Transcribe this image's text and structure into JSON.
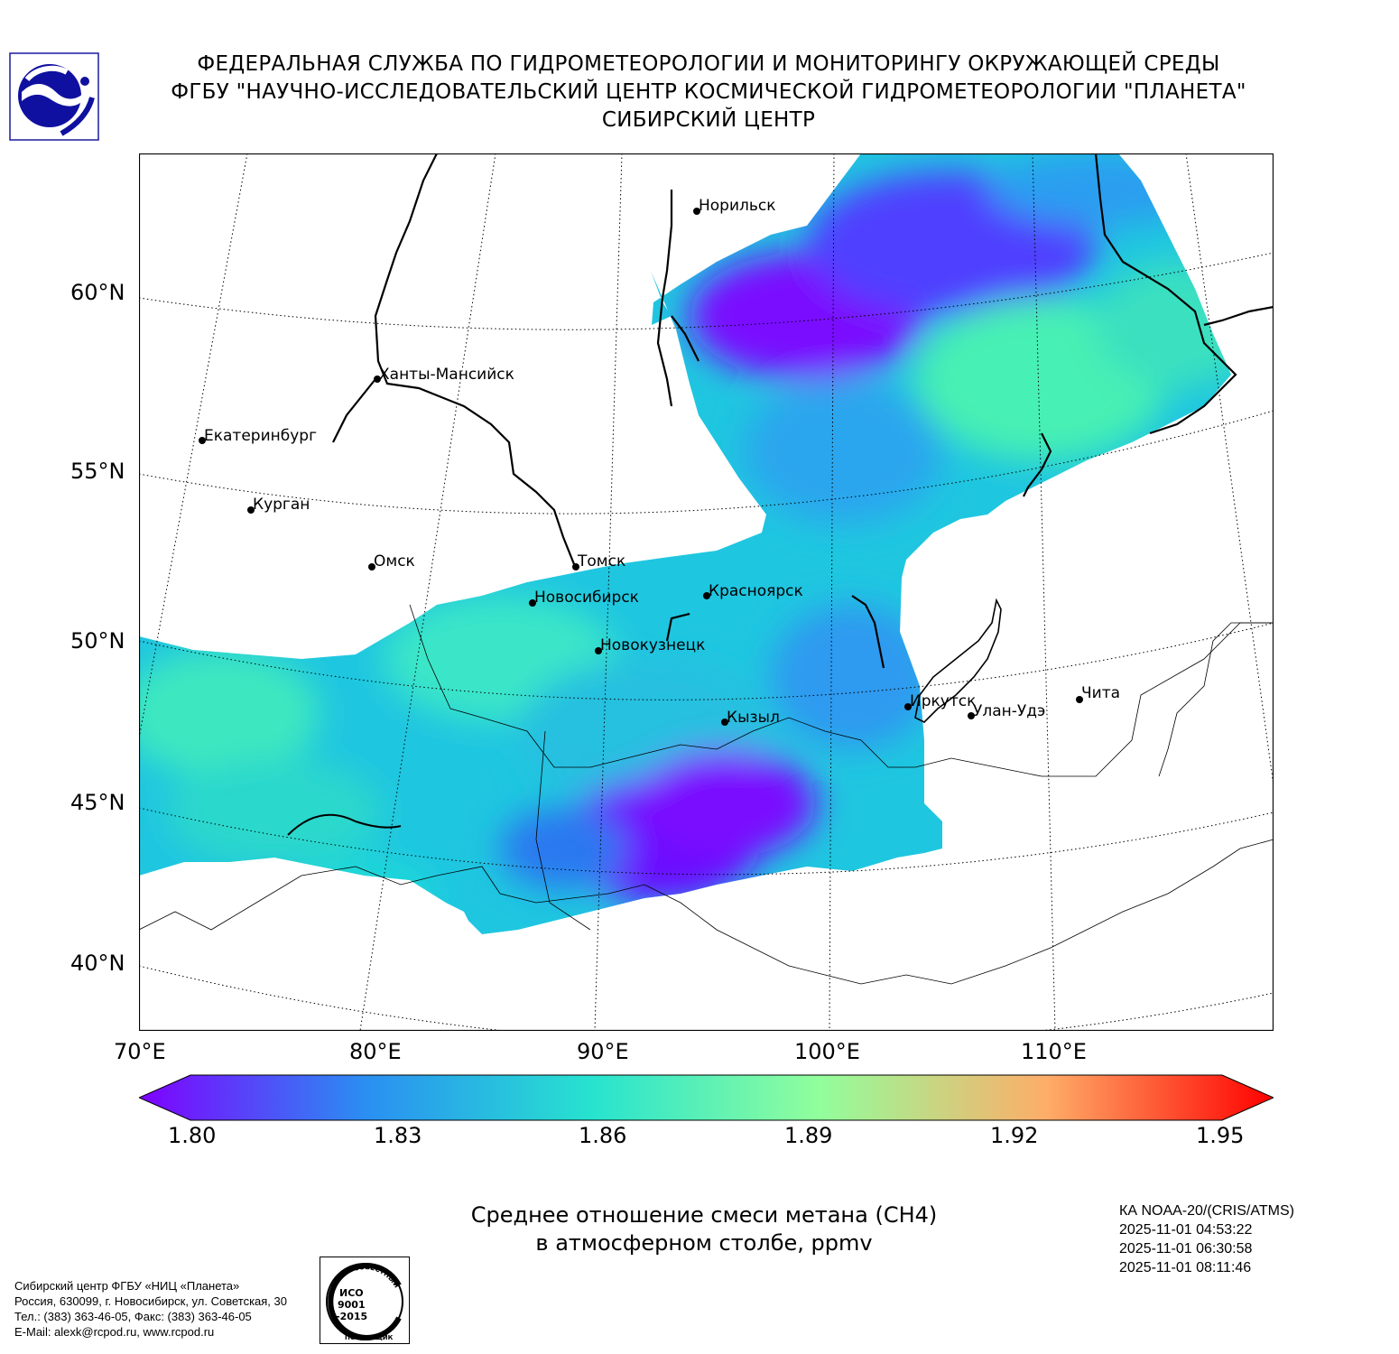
{
  "header": {
    "line1": "ФЕДЕРАЛЬНАЯ СЛУЖБА ПО ГИДРОМЕТЕОРОЛОГИИ И МОНИТОРИНГУ ОКРУЖАЮЩЕЙ СРЕДЫ",
    "line2": "ФГБУ \"НАУЧНО-ИССЛЕДОВАТЕЛЬСКИЙ ЦЕНТР КОСМИЧЕСКОЙ ГИДРОМЕТЕОРОЛОГИИ \"ПЛАНЕТА\"",
    "line3": "СИБИРСКИЙ ЦЕНТР"
  },
  "map": {
    "lat_labels": [
      "60°N",
      "55°N",
      "50°N",
      "45°N",
      "40°N"
    ],
    "lon_labels": [
      "70°E",
      "80°E",
      "90°E",
      "100°E",
      "110°E"
    ],
    "cities": [
      "Норильск",
      "Ханты-Мансийск",
      "Екатеринбург",
      "Курган",
      "Омск",
      "Томск",
      "Новосибирск",
      "Красноярск",
      "Новокузнецк",
      "Кызыл",
      "Иркутск",
      "Улан-Удэ",
      "Чита"
    ]
  },
  "colorbar": {
    "ticks": [
      "1.80",
      "1.83",
      "1.86",
      "1.89",
      "1.92",
      "1.95"
    ],
    "colors": [
      "#7f00ff",
      "#2a8ff2",
      "#27e3cf",
      "#92fe9c",
      "#fead68",
      "#ff0000"
    ]
  },
  "title": {
    "line1": "Среднее отношение смеси метана (CH4)",
    "line2": "в атмосферном столбе, ppmv"
  },
  "satellite": {
    "name": "КА NOAA-20/(CRIS/ATMS)",
    "times": [
      "2025-11-01 04:53:22",
      "2025-11-01 06:30:58",
      "2025-11-01 08:11:46"
    ]
  },
  "footer": {
    "line1": "Сибирский центр ФГБУ «НИЦ «Планета»",
    "line2": "Россия, 630099, г. Новосибирск, ул. Советская, 30",
    "line3": "Тел.: (383) 363-46-05, Факс: (383) 363-46-05",
    "line4": "E-Mail: alexk@rcpod.ru, www.rcpod.ru"
  },
  "iso_badge": {
    "top_text": "ДОБРОСОВЕСТНЫЙ",
    "iso": "ИСО",
    "number": "9001",
    "year": "-2015",
    "bottom_text": "ПОСТАВЩИК"
  }
}
